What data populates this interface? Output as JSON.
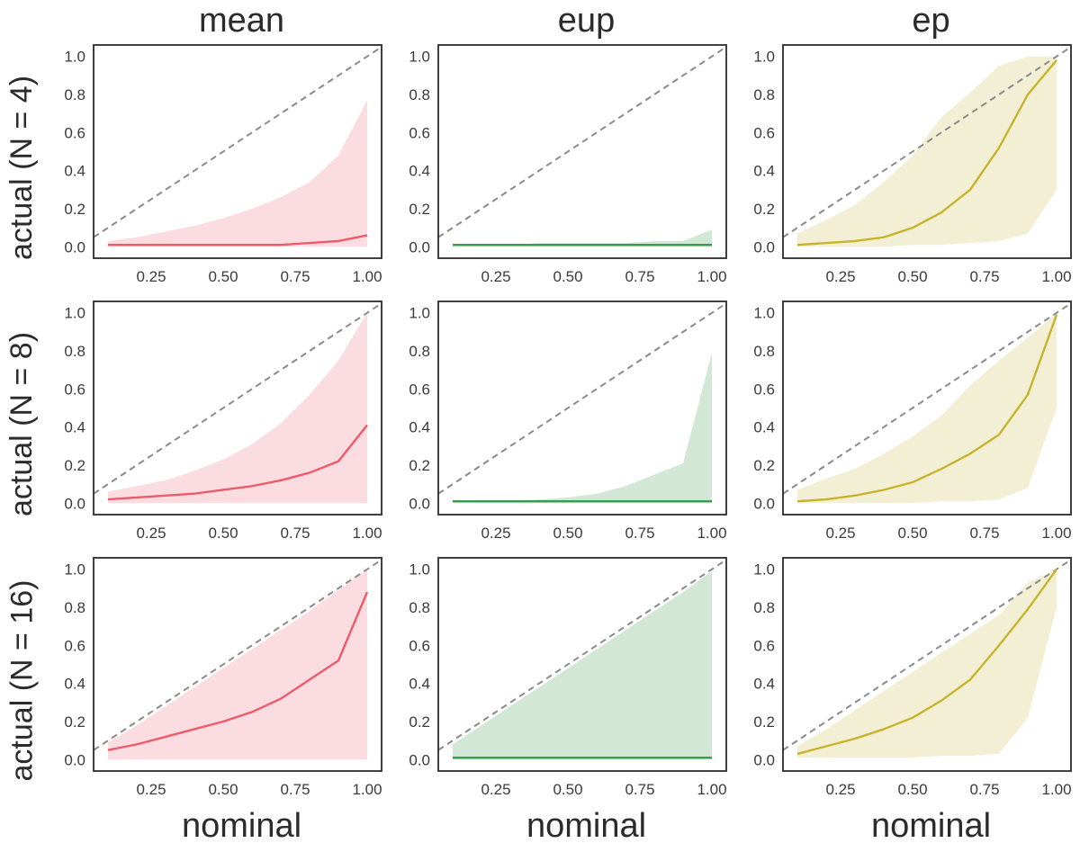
{
  "figure": {
    "columns": [
      {
        "title": "mean"
      },
      {
        "title": "eup"
      },
      {
        "title": "ep"
      }
    ],
    "rows": [
      {
        "label": "actual (N = 4)"
      },
      {
        "label": "actual (N = 8)"
      },
      {
        "label": "actual (N = 16)"
      }
    ],
    "xlabel": "nominal",
    "ylabel_prefix": "actual"
  },
  "style": {
    "red_line": "#ef5a68",
    "red_fill": "#fbdce1",
    "green_line": "#3d9b50",
    "green_fill": "#d3e7d7",
    "olive_line": "#c8b42c",
    "olive_fill": "#f2efd4",
    "reference_dash": "#8b8b8b",
    "spine": "#2b2b2b",
    "tick_text": "#3a3a3a"
  },
  "chart_data": {
    "type": "line",
    "layout": "3x3 grid, shared axes style",
    "common": {
      "x": [
        0.1,
        0.2,
        0.3,
        0.4,
        0.5,
        0.6,
        0.7,
        0.8,
        0.9,
        1.0
      ],
      "xlim": [
        0.05,
        1.05
      ],
      "ylim": [
        -0.06,
        1.06
      ],
      "x_ticks": [
        0.25,
        0.5,
        0.75,
        1.0
      ],
      "x_tick_labels": [
        "0.25",
        "0.50",
        "0.75",
        "1.00"
      ],
      "y_ticks": [
        0.0,
        0.2,
        0.4,
        0.6,
        0.8,
        1.0
      ],
      "y_tick_labels": [
        "0.0",
        "0.2",
        "0.4",
        "0.6",
        "0.8",
        "1.0"
      ],
      "grid": false,
      "legend": "none",
      "reference_line": "y = x dashed diagonal from (0.05,0.05) to (1.05,1.05)"
    },
    "plots": [
      {
        "row": "actual (N = 4)",
        "col": "mean",
        "series": "mean",
        "line": [
          0.01,
          0.01,
          0.01,
          0.01,
          0.01,
          0.01,
          0.01,
          0.02,
          0.03,
          0.06
        ],
        "band_upper": [
          0.03,
          0.05,
          0.08,
          0.11,
          0.15,
          0.2,
          0.26,
          0.34,
          0.48,
          0.77
        ],
        "band_lower": [
          0.0,
          0.0,
          0.0,
          0.0,
          0.0,
          0.0,
          0.0,
          0.0,
          0.0,
          0.0
        ],
        "line_color": "#ef5a68",
        "band_color": "#fbdce1"
      },
      {
        "row": "actual (N = 4)",
        "col": "eup",
        "series": "eup",
        "line": [
          0.01,
          0.01,
          0.01,
          0.01,
          0.01,
          0.01,
          0.01,
          0.01,
          0.01,
          0.01
        ],
        "band_upper": [
          0.01,
          0.01,
          0.01,
          0.02,
          0.02,
          0.02,
          0.02,
          0.03,
          0.03,
          0.09
        ],
        "band_lower": [
          0.0,
          0.0,
          0.0,
          0.0,
          0.0,
          0.0,
          0.0,
          0.0,
          0.0,
          0.0
        ],
        "line_color": "#3d9b50",
        "band_color": "#d3e7d7"
      },
      {
        "row": "actual (N = 4)",
        "col": "ep",
        "series": "ep",
        "line": [
          0.01,
          0.02,
          0.03,
          0.05,
          0.1,
          0.18,
          0.3,
          0.52,
          0.8,
          0.98
        ],
        "band_upper": [
          0.07,
          0.14,
          0.22,
          0.34,
          0.48,
          0.68,
          0.81,
          0.95,
          1.0,
          1.0
        ],
        "band_lower": [
          0.0,
          0.0,
          0.0,
          0.0,
          0.01,
          0.01,
          0.02,
          0.03,
          0.07,
          0.3
        ],
        "line_color": "#c8b42c",
        "band_color": "#f2efd4"
      },
      {
        "row": "actual (N = 8)",
        "col": "mean",
        "series": "mean",
        "line": [
          0.02,
          0.03,
          0.04,
          0.05,
          0.07,
          0.09,
          0.12,
          0.16,
          0.22,
          0.41
        ],
        "band_upper": [
          0.06,
          0.09,
          0.12,
          0.17,
          0.23,
          0.31,
          0.42,
          0.57,
          0.75,
          1.0
        ],
        "band_lower": [
          0.0,
          0.0,
          0.0,
          0.0,
          0.0,
          0.0,
          0.0,
          0.0,
          0.0,
          0.0
        ],
        "line_color": "#ef5a68",
        "band_color": "#fbdce1"
      },
      {
        "row": "actual (N = 8)",
        "col": "eup",
        "series": "eup",
        "line": [
          0.01,
          0.01,
          0.01,
          0.01,
          0.01,
          0.01,
          0.01,
          0.01,
          0.01,
          0.01
        ],
        "band_upper": [
          0.01,
          0.01,
          0.01,
          0.02,
          0.03,
          0.05,
          0.09,
          0.15,
          0.21,
          0.79
        ],
        "band_lower": [
          0.0,
          0.0,
          0.0,
          0.0,
          0.0,
          0.0,
          0.0,
          0.0,
          0.0,
          0.0
        ],
        "line_color": "#3d9b50",
        "band_color": "#d3e7d7"
      },
      {
        "row": "actual (N = 8)",
        "col": "ep",
        "series": "ep",
        "line": [
          0.01,
          0.02,
          0.04,
          0.07,
          0.11,
          0.18,
          0.26,
          0.36,
          0.57,
          0.99
        ],
        "band_upper": [
          0.07,
          0.13,
          0.18,
          0.26,
          0.35,
          0.46,
          0.62,
          0.75,
          0.87,
          1.0
        ],
        "band_lower": [
          0.0,
          0.0,
          0.0,
          0.0,
          0.0,
          0.01,
          0.01,
          0.02,
          0.08,
          0.5
        ],
        "line_color": "#c8b42c",
        "band_color": "#f2efd4"
      },
      {
        "row": "actual (N = 16)",
        "col": "mean",
        "series": "mean",
        "line": [
          0.05,
          0.08,
          0.12,
          0.16,
          0.2,
          0.25,
          0.32,
          0.42,
          0.52,
          0.88
        ],
        "band_upper": [
          0.09,
          0.18,
          0.28,
          0.38,
          0.48,
          0.58,
          0.68,
          0.78,
          0.89,
          1.0
        ],
        "band_lower": [
          0.0,
          0.0,
          0.0,
          0.0,
          0.0,
          0.0,
          0.0,
          0.0,
          0.0,
          0.0
        ],
        "line_color": "#ef5a68",
        "band_color": "#fbdce1"
      },
      {
        "row": "actual (N = 16)",
        "col": "eup",
        "series": "eup",
        "line": [
          0.01,
          0.01,
          0.01,
          0.01,
          0.01,
          0.01,
          0.01,
          0.01,
          0.01,
          0.01
        ],
        "band_upper": [
          0.08,
          0.18,
          0.28,
          0.38,
          0.48,
          0.58,
          0.68,
          0.78,
          0.88,
          0.99
        ],
        "band_lower": [
          0.0,
          0.0,
          0.0,
          0.0,
          0.0,
          0.0,
          0.0,
          0.0,
          0.0,
          0.0
        ],
        "line_color": "#3d9b50",
        "band_color": "#d3e7d7"
      },
      {
        "row": "actual (N = 16)",
        "col": "ep",
        "series": "ep",
        "line": [
          0.03,
          0.07,
          0.11,
          0.16,
          0.22,
          0.31,
          0.42,
          0.6,
          0.79,
          1.0
        ],
        "band_upper": [
          0.07,
          0.16,
          0.26,
          0.36,
          0.46,
          0.56,
          0.66,
          0.76,
          0.93,
          1.0
        ],
        "band_lower": [
          0.01,
          0.01,
          0.01,
          0.01,
          0.01,
          0.02,
          0.02,
          0.03,
          0.22,
          0.8
        ],
        "line_color": "#c8b42c",
        "band_color": "#f2efd4"
      }
    ]
  }
}
